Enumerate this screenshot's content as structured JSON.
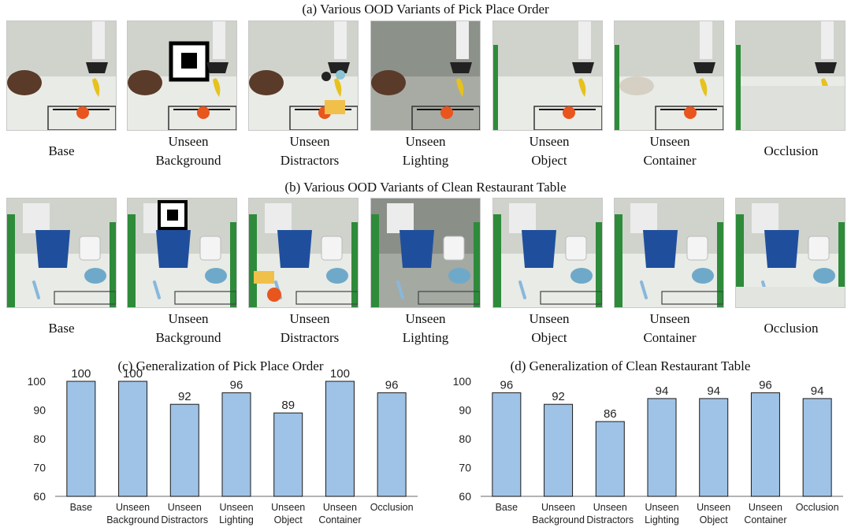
{
  "sections": {
    "a_title": "(a) Various OOD Variants of Pick Place Order",
    "b_title": "(b) Various OOD Variants of Clean Restaurant Table",
    "a_captions": [
      "Base",
      "Unseen\nBackground",
      "Unseen\nDistractors",
      "Unseen\nLighting",
      "Unseen\nObject",
      "Unseen\nContainer",
      "Occlusion"
    ],
    "b_captions": [
      "Base",
      "Unseen\nBackground",
      "Unseen\nDistractors",
      "Unseen\nLighting",
      "Unseen\nObject",
      "Unseen\nContainer",
      "Occlusion"
    ]
  },
  "colors": {
    "bar_fill": "#9fc3e6",
    "bar_stroke": "#1a1a1a",
    "table_white": "#e9ebe6",
    "basket": "#5a3a28",
    "blue_box": "#1f4f9c",
    "banana": "#e6c21f",
    "orange": "#e8561e",
    "green_cloth": "#2e8b3a"
  },
  "chart_data": [
    {
      "type": "bar",
      "title": "(c) Generalization of Pick Place Order",
      "categories": [
        "Base",
        "Unseen\nBackground",
        "Unseen\nDistractors",
        "Unseen\nLighting",
        "Unseen\nObject",
        "Unseen\nContainer",
        "Occlusion"
      ],
      "values": [
        100,
        100,
        92,
        96,
        89,
        100,
        96
      ],
      "ylim": [
        60,
        100
      ],
      "yticks": [
        60,
        70,
        80,
        90,
        100
      ],
      "grid": false,
      "xlabel": "",
      "ylabel": ""
    },
    {
      "type": "bar",
      "title": "(d) Generalization of Clean Restaurant Table",
      "categories": [
        "Base",
        "Unseen\nBackground",
        "Unseen\nDistractors",
        "Unseen\nLighting",
        "Unseen\nObject",
        "Unseen\nContainer",
        "Occlusion"
      ],
      "values": [
        96,
        92,
        86,
        94,
        94,
        96,
        94
      ],
      "ylim": [
        60,
        100
      ],
      "yticks": [
        60,
        70,
        80,
        90,
        100
      ],
      "grid": false,
      "xlabel": "",
      "ylabel": ""
    }
  ]
}
